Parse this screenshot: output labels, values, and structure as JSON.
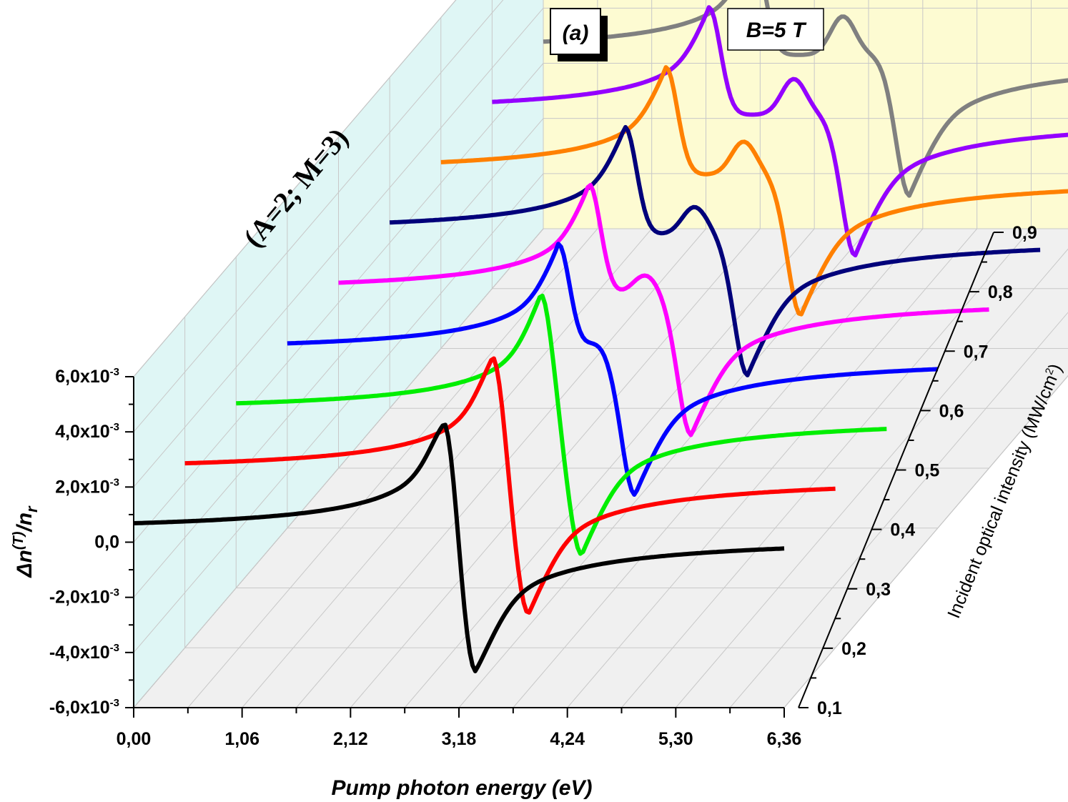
{
  "chart_data": {
    "type": "line",
    "subtype": "3d-waterfall",
    "x_axis": {
      "title": "Pump photon energy (eV)",
      "ticks": [
        "0,00",
        "1,06",
        "2,12",
        "3,18",
        "4,24",
        "5,30",
        "6,36"
      ],
      "tick_values": [
        0,
        1.06,
        2.12,
        3.18,
        4.24,
        5.3,
        6.36
      ],
      "range": [
        0,
        6.36
      ]
    },
    "y_axis": {
      "title_main": "Δn",
      "title_sup": "(T)",
      "title_mid": "/n",
      "title_sub": "r",
      "ticks": [
        {
          "mantissa": "6,0x10",
          "exp": "-3",
          "value": 0.006
        },
        {
          "mantissa": "4,0x10",
          "exp": "-3",
          "value": 0.004
        },
        {
          "mantissa": "2,0x10",
          "exp": "-3",
          "value": 0.002
        },
        {
          "mantissa": "0,0",
          "exp": "",
          "value": 0.0
        },
        {
          "mantissa": "-2,0x10",
          "exp": "-3",
          "value": -0.002
        },
        {
          "mantissa": "-4,0x10",
          "exp": "-3",
          "value": -0.004
        },
        {
          "mantissa": "-6,0x10",
          "exp": "-3",
          "value": -0.006
        }
      ],
      "range": [
        -0.006,
        0.006
      ]
    },
    "z_axis": {
      "title": "Incident optical intensity (MW/cm",
      "title_sup": "2",
      "title_end": ")",
      "ticks": [
        "0,1",
        "0,2",
        "0,3",
        "0,4",
        "0,5",
        "0,6",
        "0,7",
        "0,8",
        "0,9"
      ],
      "tick_values": [
        0.1,
        0.2,
        0.3,
        0.4,
        0.5,
        0.6,
        0.7,
        0.8,
        0.9
      ]
    },
    "annotations": {
      "panel": "(a)",
      "field": "B=5 T",
      "params": "(A=2; M=3)"
    },
    "series": [
      {
        "intensity": 0.1,
        "color": "#000000",
        "x_start": 0.0,
        "x_end": 6.36,
        "baseline": 0.0003,
        "x_peak": 3.04,
        "y_peak": 0.0047,
        "x_dip": 3.34,
        "y_dip": -0.0048
      },
      {
        "intensity": 0.2,
        "color": "#ff0000",
        "x_start": 0.0,
        "x_end": 6.36,
        "baseline": 0.0003,
        "x_peak": 3.01,
        "y_peak": 0.0047,
        "x_dip": 3.36,
        "y_dip": -0.0048
      },
      {
        "intensity": 0.3,
        "color": "#00ee00",
        "x_start": 0.0,
        "x_end": 6.36,
        "baseline": 0.0003,
        "x_peak": 2.98,
        "y_peak": 0.0047,
        "x_dip": 3.38,
        "y_dip": -0.0048
      },
      {
        "intensity": 0.4,
        "color": "#0000ff",
        "x_start": 0.0,
        "x_end": 6.36,
        "baseline": 0.0003,
        "x_peak": 2.65,
        "y_peak": 0.0043,
        "x_dip": 3.4,
        "y_dip": -0.0048,
        "x_shoulder": 3.02,
        "y_shoulder": 0.0004
      },
      {
        "intensity": 0.5,
        "color": "#ff00ff",
        "x_start": 0.0,
        "x_end": 6.36,
        "baseline": 0.0003,
        "x_peak": 2.45,
        "y_peak": 0.0043,
        "x_dip": 3.45,
        "y_dip": -0.0048,
        "x_shoulder": 3.0,
        "y_shoulder": 0.0007
      },
      {
        "intensity": 0.6,
        "color": "#00007a",
        "x_start": 0.0,
        "x_end": 6.36,
        "baseline": 0.0003,
        "x_peak": 2.3,
        "y_peak": 0.0042,
        "x_dip": 3.5,
        "y_dip": -0.0048,
        "x_shoulder": 2.98,
        "y_shoulder": 0.001
      },
      {
        "intensity": 0.7,
        "color": "#ff8000",
        "x_start": 0.0,
        "x_end": 6.36,
        "baseline": 0.0003,
        "x_peak": 2.2,
        "y_peak": 0.0042,
        "x_dip": 3.52,
        "y_dip": -0.0048,
        "x_shoulder": 2.96,
        "y_shoulder": 0.0012
      },
      {
        "intensity": 0.8,
        "color": "#9400ff",
        "x_start": 0.0,
        "x_end": 6.36,
        "baseline": 0.0003,
        "x_peak": 2.12,
        "y_peak": 0.0042,
        "x_dip": 3.55,
        "y_dip": -0.0048,
        "x_shoulder": 2.95,
        "y_shoulder": 0.0013
      },
      {
        "intensity": 0.9,
        "color": "#808080",
        "x_start": 0.0,
        "x_end": 6.36,
        "baseline": 0.0003,
        "x_peak": 2.05,
        "y_peak": 0.0042,
        "x_dip": 3.58,
        "y_dip": -0.0048,
        "x_shoulder": 2.93,
        "y_shoulder": 0.0014
      }
    ],
    "colors": {
      "back_wall": "#fdfbd2",
      "side_wall": "#dff6f5",
      "floor": "#f0f0f0"
    },
    "grid": true
  }
}
